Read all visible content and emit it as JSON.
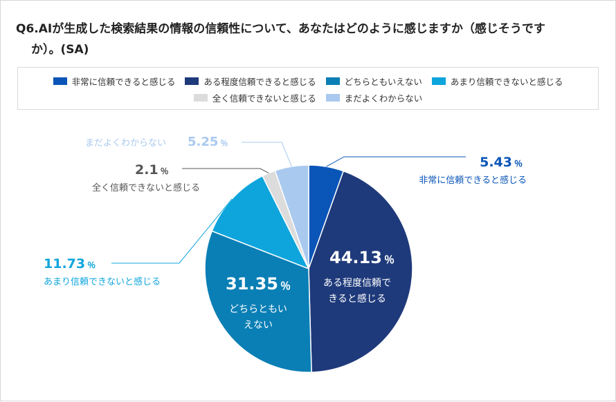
{
  "title_line1": "Q6.AIが生成した検索結果の情報の信頼性について、あなたはどのように感じますか（感じそうです",
  "title_line2": "か）。(SA)",
  "percent_sign": "％",
  "colors": {
    "very": "#0a55b8",
    "somewhat": "#1f3a7b",
    "neutral": "#0a7fb5",
    "notmuch": "#0ea5dc",
    "none": "#dcdcdc",
    "unknown": "#a9c9ef"
  },
  "chart_data": {
    "type": "pie",
    "title": "",
    "legend_placement": "top",
    "start_angle_deg": 0,
    "direction": "clockwise",
    "slices": [
      {
        "key": "very",
        "label": "非常に信頼できると感じる",
        "value": 5.43,
        "value_text": "5.43"
      },
      {
        "key": "somewhat",
        "label": "ある程度信頼できると感じる",
        "value": 44.13,
        "value_text": "44.13"
      },
      {
        "key": "neutral",
        "label": "どちらともいえない",
        "value": 31.35,
        "value_text": "31.35"
      },
      {
        "key": "notmuch",
        "label": "あまり信頼できないと感じる",
        "value": 11.73,
        "value_text": "11.73"
      },
      {
        "key": "none",
        "label": "全く信頼できないと感じる",
        "value": 2.1,
        "value_text": "2.1"
      },
      {
        "key": "unknown",
        "label": "まだよくわからない",
        "value": 5.25,
        "value_text": "5.25"
      }
    ]
  }
}
